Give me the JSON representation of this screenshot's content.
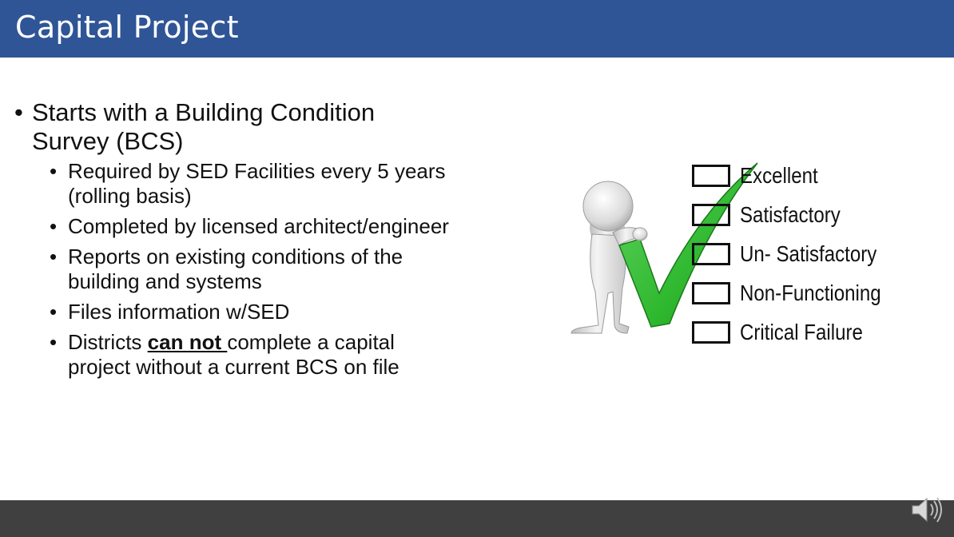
{
  "header": {
    "title": "Capital Project"
  },
  "content": {
    "main_bullet_line1": "Starts with a Building Condition",
    "main_bullet_line2": "Survey (BCS)",
    "sub_bullets": [
      {
        "line1": "Required by SED Facilities every 5 years",
        "line2": "(rolling basis)"
      },
      {
        "line1": "Completed by licensed architect/engineer"
      },
      {
        "line1": "Reports on existing conditions of the",
        "line2": "building and systems"
      },
      {
        "line1": "Files information w/SED"
      }
    ],
    "last_bullet": {
      "prefix": "Districts ",
      "emphasis": "can not ",
      "suffix": "complete a capital",
      "line2": "project without a current BCS on file"
    }
  },
  "checklist": {
    "items": [
      "Excellent",
      "Satisfactory",
      "Un- Satisfactory",
      "Non-Functioning",
      "Critical Failure"
    ]
  },
  "colors": {
    "header": "#2f5597",
    "footer": "#404040",
    "check": "#2fb82f"
  },
  "icons": {
    "audio": "speaker-icon"
  }
}
